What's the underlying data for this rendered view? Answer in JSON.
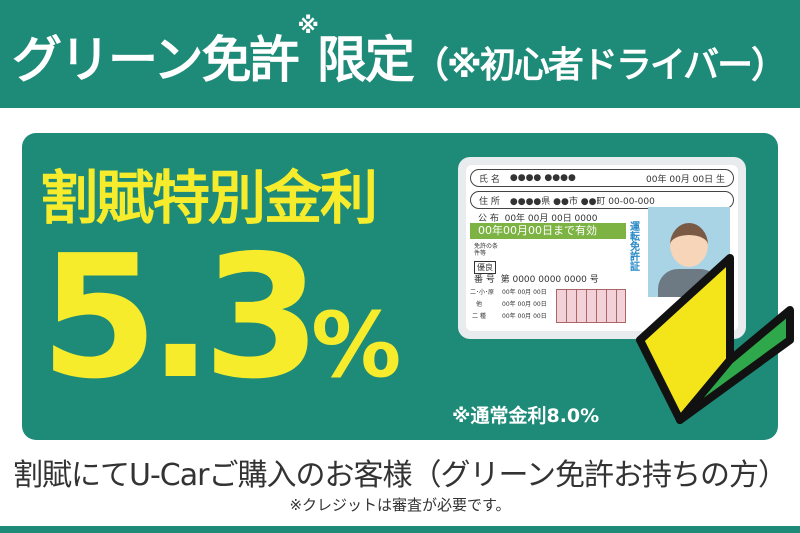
{
  "header": {
    "title_main": "グリーン免許",
    "title_mark": "※",
    "title_rest": "限定",
    "title_paren": "（※初心者ドライバー）"
  },
  "panel": {
    "title": "割賦特別金利",
    "rate": "5.3",
    "rate_unit": "%",
    "note": "※通常金利8.0%"
  },
  "license_card": {
    "name_label": "氏 名",
    "name_value": "●●●●  ●●●●",
    "birth": "00年 00月 00日 生",
    "address_label": "住 所",
    "address_value": "●●●●県 ●●市 ●●町 00-00-000",
    "issue_label": "公 布",
    "issue_value": "00年 00月 00日 0000",
    "valid_until": "00年00月00日まで有効",
    "vertical_title": "運転免許証",
    "conditions_label": "免許の条件等",
    "rank": "優良",
    "number_label": "番 号",
    "number_value": "第 0000 0000 0000 号",
    "dates": [
      "00年 00月 00日",
      "00年 00月 00日",
      "00年 00月 00日"
    ],
    "class_labels": [
      "二･小･原",
      "他",
      "二 種"
    ]
  },
  "footer": {
    "line1": "割賦にてU-Carご購入のお客様（グリーン免許お持ちの方）",
    "line2": "※クレジットは審査が必要です。"
  },
  "colors": {
    "teal": "#1e8a78",
    "yellow": "#f6ec2c",
    "beginner_yellow": "#f4e51a",
    "beginner_green": "#2ea84a"
  }
}
